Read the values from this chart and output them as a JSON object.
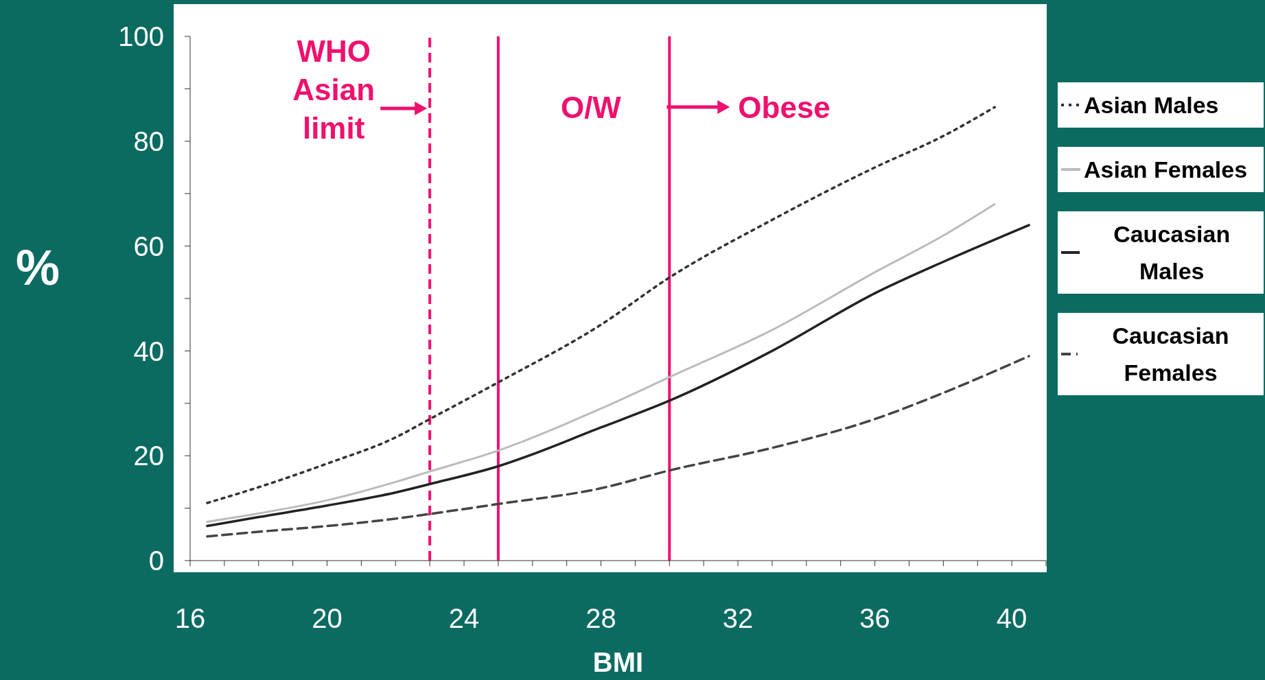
{
  "chart_data": {
    "type": "line",
    "xlabel": "BMI",
    "ylabel": "%",
    "xlim": [
      16,
      41
    ],
    "ylim": [
      0,
      100
    ],
    "xticks": [
      16,
      {
        "value": 17,
        "label": null
      },
      {
        "value": 18,
        "label": null
      },
      {
        "value": 19,
        "label": null
      },
      20,
      {
        "value": 21,
        "label": null
      },
      {
        "value": 22,
        "label": null
      },
      {
        "value": 23,
        "label": null
      },
      24,
      {
        "value": 25,
        "label": null
      },
      {
        "value": 26,
        "label": null
      },
      {
        "value": 27,
        "label": null
      },
      28,
      {
        "value": 29,
        "label": null
      },
      {
        "value": 30,
        "label": null
      },
      {
        "value": 31,
        "label": null
      },
      32,
      {
        "value": 33,
        "label": null
      },
      {
        "value": 34,
        "label": null
      },
      {
        "value": 35,
        "label": null
      },
      36,
      {
        "value": 37,
        "label": null
      },
      {
        "value": 38,
        "label": null
      },
      {
        "value": 39,
        "label": null
      },
      40,
      {
        "value": 41,
        "label": null
      }
    ],
    "yticks": [
      0,
      {
        "value": 10,
        "label": null
      },
      20,
      {
        "value": 30,
        "label": null
      },
      40,
      {
        "value": 50,
        "label": null
      },
      60,
      {
        "value": 70,
        "label": null
      },
      80,
      {
        "value": 90,
        "label": null
      },
      100
    ],
    "grid": false,
    "legend": "right",
    "marker": "none",
    "series": [
      {
        "name": "Asian Males",
        "color": "#333333",
        "line_style": "dotted",
        "x": [
          16.5,
          18,
          20,
          22,
          23,
          25,
          28,
          30,
          33,
          36,
          38,
          39.5
        ],
        "values": [
          11,
          14,
          18.5,
          23.5,
          27,
          34,
          45,
          54,
          65,
          75,
          81,
          86.5
        ]
      },
      {
        "name": "Asian Females",
        "color": "#bbbbbb",
        "line_style": "solid",
        "x": [
          16.5,
          18,
          20,
          22,
          23,
          25,
          28,
          30,
          33,
          36,
          38,
          39.5
        ],
        "values": [
          7.4,
          9,
          11.5,
          15,
          17,
          21,
          29,
          35,
          44,
          55,
          62,
          68
        ]
      },
      {
        "name": "Caucasian Males",
        "color": "#222222",
        "line_style": "solid",
        "x": [
          16.5,
          18,
          20,
          22,
          23,
          25,
          28,
          30,
          33,
          36,
          38,
          40.5
        ],
        "values": [
          6.6,
          8.3,
          10.5,
          13,
          14.6,
          18,
          25.4,
          30.5,
          40,
          51,
          57,
          64
        ]
      },
      {
        "name": "Caucasian Females",
        "color": "#444444",
        "line_style": "dashed",
        "x": [
          16.5,
          18,
          20,
          22,
          23,
          25,
          28,
          30,
          33,
          36,
          38,
          40.5
        ],
        "values": [
          4.6,
          5.5,
          6.6,
          8,
          8.9,
          10.8,
          13.8,
          17.2,
          21.5,
          27,
          32,
          39
        ]
      }
    ],
    "ref_lines": [
      {
        "axis": "x",
        "value": 23,
        "label": "WHO Asian limit",
        "color": "#f0106e",
        "line_style": "dashed"
      },
      {
        "axis": "x",
        "value": 25,
        "label": "O/W",
        "color": "#f0106e",
        "line_style": "solid"
      },
      {
        "axis": "x",
        "value": 30,
        "label": "Obese",
        "color": "#f0106e",
        "line_style": "solid"
      }
    ]
  }
}
